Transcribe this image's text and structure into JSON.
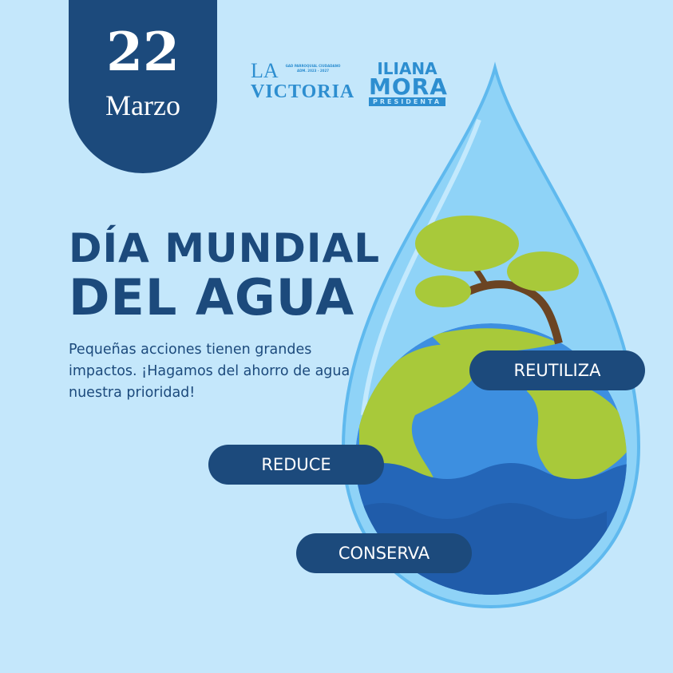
{
  "date": {
    "day": "22",
    "month": "Marzo"
  },
  "logos": {
    "la_victoria": {
      "line1": "LA",
      "line2": "VICTORIA",
      "small_text": "GAD PARROQUIAL CIUDADANO ADM. 2023 - 2027"
    },
    "iliana_mora": {
      "first": "ILIANA",
      "last": "MORA",
      "role": "PRESIDENTA"
    }
  },
  "title": {
    "line1": "DÍA MUNDIAL",
    "line2": "DEL AGUA"
  },
  "description": "Pequeñas acciones tienen grandes impactos. ¡Hagamos del ahorro de agua nuestra prioridad!",
  "actions": {
    "reutiliza": "REUTILIZA",
    "reduce": "REDUCE",
    "conserva": "CONSERVA"
  },
  "colors": {
    "background": "#c4e7fb",
    "navy": "#1c4a7c",
    "drop": "#8fd3f7",
    "land": "#a8c93a",
    "ocean": "#2f7fd0"
  }
}
